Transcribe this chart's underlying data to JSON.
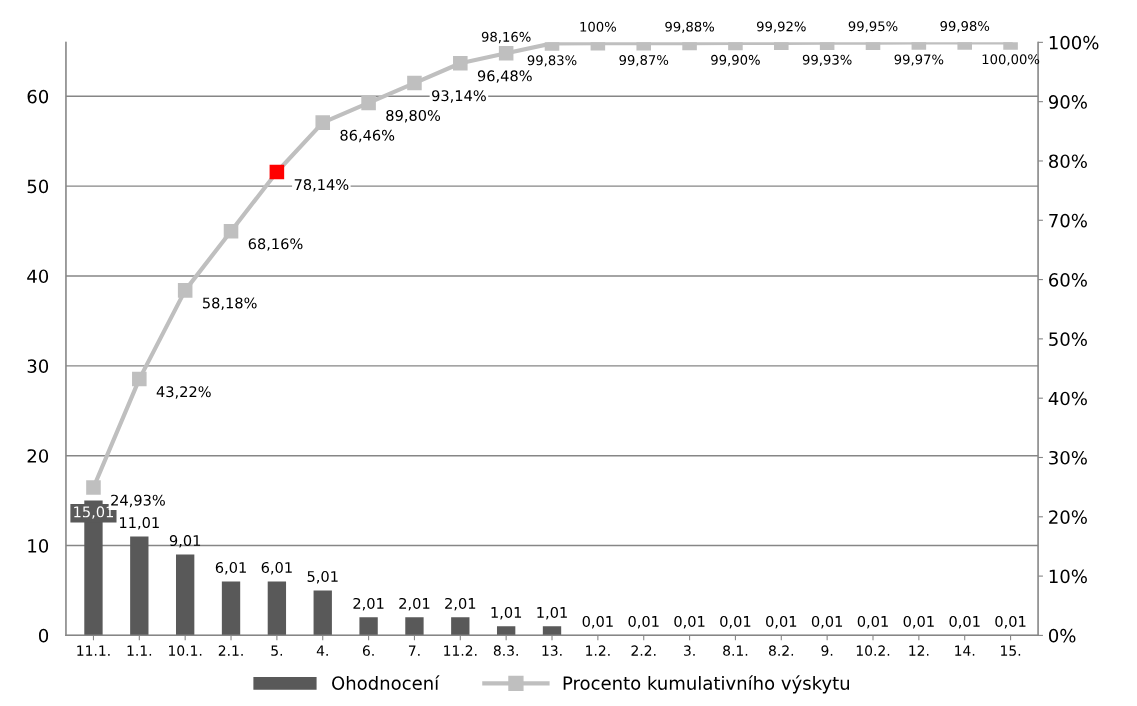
{
  "chart_data": {
    "type": "bar",
    "categories": [
      "11.1.",
      "1.1.",
      "10.1.",
      "2.1.",
      "5.",
      "4.",
      "6.",
      "7.",
      "11.2.",
      "8.3.",
      "13.",
      "1.2.",
      "2.2.",
      "3.",
      "8.1.",
      "8.2.",
      "9.",
      "10.2.",
      "12.",
      "14.",
      "15."
    ],
    "series": [
      {
        "name": "Ohodnocení",
        "type": "bar",
        "color": "#595959",
        "values": [
          15.01,
          11.01,
          9.01,
          6.01,
          6.01,
          5.01,
          2.01,
          2.01,
          2.01,
          1.01,
          1.01,
          0.01,
          0.01,
          0.01,
          0.01,
          0.01,
          0.01,
          0.01,
          0.01,
          0.01,
          0.01
        ],
        "value_labels": [
          "15,01",
          "11,01",
          "9,01",
          "6,01",
          "6,01",
          "5,01",
          "2,01",
          "2,01",
          "2,01",
          "1,01",
          "1,01",
          "0,01",
          "0,01",
          "0,01",
          "0,01",
          "0,01",
          "0,01",
          "0,01",
          "0,01",
          "0,01",
          "0,01"
        ]
      },
      {
        "name": "Procento kumulativního výskytu",
        "type": "line",
        "axis": "y2",
        "color": "#bfbfbf",
        "marker": "square",
        "line_style": "solid",
        "colors": [
          "#bfbfbf",
          "#bfbfbf",
          "#bfbfbf",
          "#bfbfbf",
          "#ff0000",
          "#bfbfbf",
          "#bfbfbf",
          "#bfbfbf",
          "#bfbfbf",
          "#bfbfbf",
          "#bfbfbf",
          "#bfbfbf",
          "#bfbfbf",
          "#bfbfbf",
          "#bfbfbf",
          "#bfbfbf",
          "#bfbfbf",
          "#bfbfbf",
          "#bfbfbf",
          "#bfbfbf",
          "#bfbfbf"
        ],
        "values": [
          24.93,
          43.22,
          58.18,
          68.16,
          78.14,
          86.46,
          89.8,
          93.14,
          96.48,
          98.16,
          99.83,
          99.85,
          99.87,
          99.88,
          99.9,
          99.92,
          99.93,
          99.95,
          99.97,
          99.98,
          100.0
        ],
        "value_labels": [
          "24,93%",
          "43,22%",
          "58,18%",
          "68,16%",
          "78,14%",
          "86,46%",
          "89,80%",
          "93,14%",
          "96,48%",
          "98,16%",
          "99,83%",
          "100%",
          "99,87%",
          "99,88%",
          "99,90%",
          "99,92%",
          "99,93%",
          "99,95%",
          "99,97%",
          "99,98%",
          "100,00%"
        ]
      }
    ],
    "ylim": [
      0,
      66
    ],
    "yticks": [
      0,
      10,
      20,
      30,
      40,
      50,
      60
    ],
    "y2lim": [
      0,
      100
    ],
    "y2ticks": [
      {
        "value": 0,
        "label": "0%"
      },
      {
        "value": 10,
        "label": "10%"
      },
      {
        "value": 20,
        "label": "20%"
      },
      {
        "value": 30,
        "label": "30%"
      },
      {
        "value": 40,
        "label": "40%"
      },
      {
        "value": 50,
        "label": "50%"
      },
      {
        "value": 60,
        "label": "60%"
      },
      {
        "value": 70,
        "label": "70%"
      },
      {
        "value": 80,
        "label": "80%"
      },
      {
        "value": 90,
        "label": "90%"
      },
      {
        "value": 100,
        "label": "100%"
      }
    ],
    "grid": "y",
    "legend": "bottom"
  }
}
